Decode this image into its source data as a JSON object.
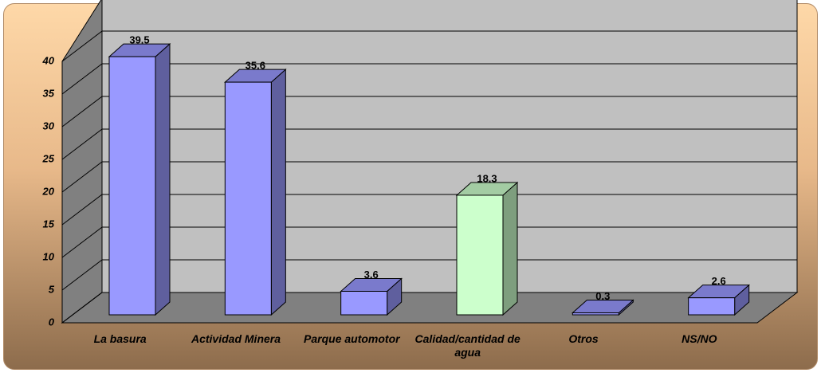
{
  "chart_data": {
    "type": "bar3d",
    "categories": [
      "La basura",
      "Actividad Minera",
      "Parque automotor",
      "Calidad/cantidad de agua",
      "Otros",
      "NS/NO"
    ],
    "values": [
      39.5,
      35.6,
      3.6,
      18.3,
      0.3,
      2.6
    ],
    "colors": [
      "#9999ff",
      "#9999ff",
      "#9999ff",
      "#ccffcc",
      "#9999ff",
      "#9999ff"
    ],
    "ylim": [
      0,
      45
    ],
    "yticks": [
      0,
      5,
      10,
      15,
      20,
      25,
      30,
      35,
      40
    ],
    "grid": true
  }
}
